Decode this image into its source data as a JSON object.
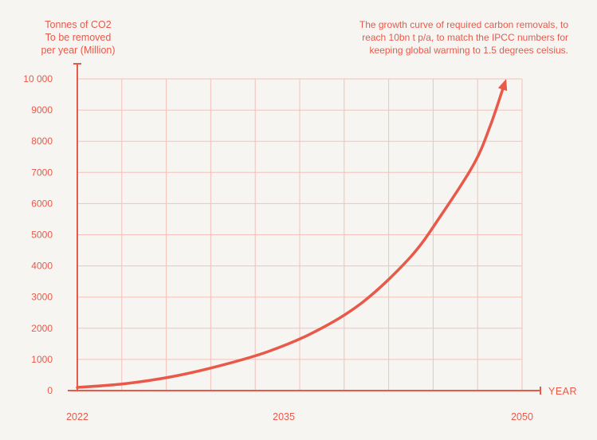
{
  "colors": {
    "accent": "#e8594a",
    "grid": "#f3c1b9",
    "background": "#f7f5f1"
  },
  "chart_data": {
    "type": "line",
    "ylabel_lines": [
      "Tonnes of CO2",
      "To be removed",
      "per year (Million)"
    ],
    "xlabel": "YEAR",
    "annotation_lines": [
      "The growth curve of required carbon removals, to",
      "reach 10bn t p/a, to match the IPCC numbers for",
      "keeping global warming to 1.5 degrees celsius."
    ],
    "xlim": [
      2022,
      2050
    ],
    "ylim": [
      0,
      10000
    ],
    "x_ticks": [
      "2022",
      "2035",
      "2050"
    ],
    "x_tick_values": [
      2022,
      2035,
      2050
    ],
    "y_ticks": [
      "0",
      "1000",
      "2000",
      "3000",
      "4000",
      "5000",
      "6000",
      "7000",
      "8000",
      "9000",
      "10 000"
    ],
    "y_tick_values": [
      0,
      1000,
      2000,
      3000,
      4000,
      5000,
      6000,
      7000,
      8000,
      9000,
      10000
    ],
    "grid": true,
    "series": [
      {
        "x": [
          2022,
          2025,
          2028,
          2031,
          2034,
          2037,
          2040,
          2043,
          2045,
          2047,
          2048,
          2049
        ],
        "values": [
          100,
          220,
          450,
          800,
          1250,
          1900,
          2850,
          4300,
          5700,
          7300,
          8500,
          10000
        ],
        "arrow_at_end": true
      }
    ]
  }
}
